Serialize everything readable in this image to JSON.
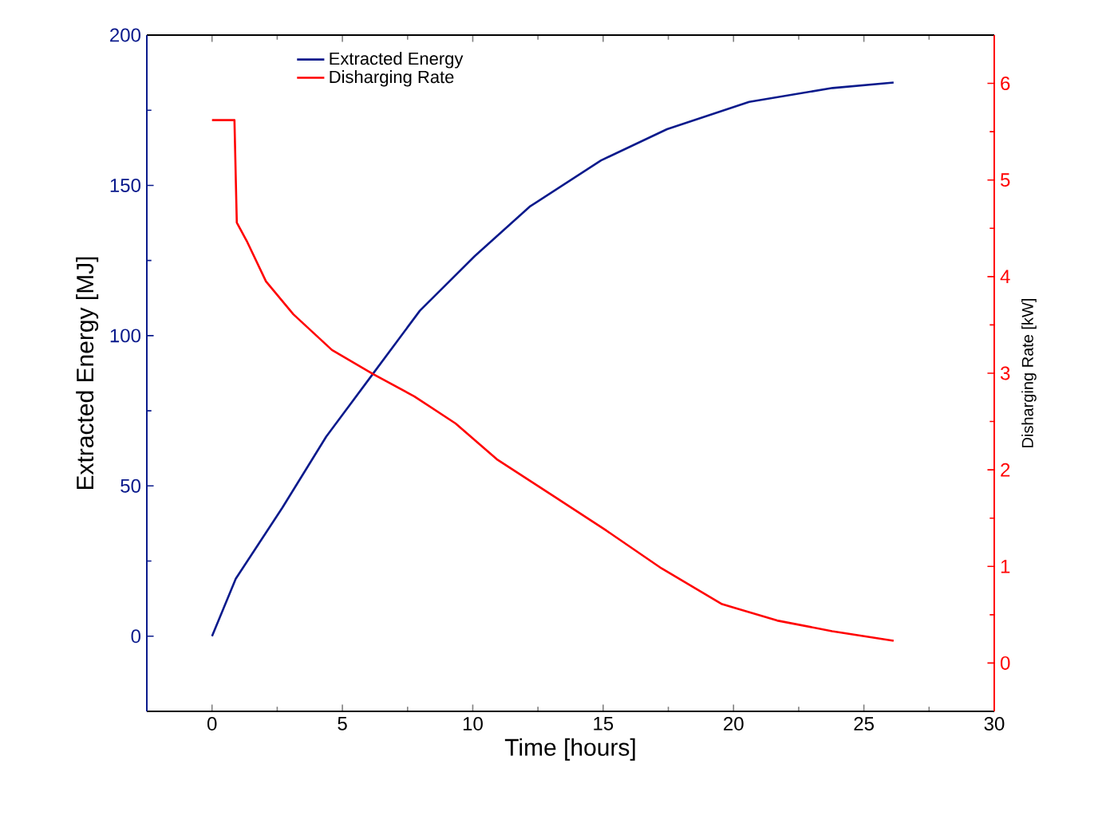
{
  "chart_data": {
    "type": "line",
    "xlabel": "Time [hours]",
    "ylabel": "Extracted Energy [MJ]",
    "y2label": "Disharging Rate [kW]",
    "xlim": [
      -2.5,
      30
    ],
    "xticks": [
      0,
      5,
      10,
      15,
      20,
      25,
      30
    ],
    "ylim": [
      -25,
      200
    ],
    "yticks": [
      0,
      50,
      100,
      150,
      200
    ],
    "y2lim": [
      -0.5,
      6.5
    ],
    "y2ticks": [
      0,
      1,
      2,
      3,
      4,
      5,
      6
    ],
    "grid": false,
    "legend": "top left",
    "marker": "none",
    "line_style": "solid",
    "series": [
      {
        "name": "Extracted Energy",
        "color": "#0a1a8c",
        "x": [
          0,
          0.91,
          2.7,
          4.38,
          6.18,
          7.97,
          10.08,
          12.18,
          14.92,
          17.45,
          20.6,
          23.8,
          26.14
        ],
        "values": [
          0,
          19.1,
          42.8,
          66.4,
          87.4,
          108.3,
          126.5,
          142.9,
          158.3,
          168.7,
          177.8,
          182.4,
          184.2
        ]
      },
      {
        "name": "Disharging Rate",
        "color": "#ff0000",
        "axis": "y2",
        "x": [
          0,
          0.86,
          0.95,
          1.33,
          2.07,
          3.12,
          4.6,
          6.18,
          7.76,
          9.34,
          10.92,
          13.03,
          15.13,
          17.24,
          19.56,
          21.67,
          23.78,
          26.14
        ],
        "values": [
          5.62,
          5.62,
          4.56,
          4.37,
          3.95,
          3.61,
          3.24,
          2.99,
          2.76,
          2.48,
          2.11,
          1.74,
          1.37,
          0.98,
          0.61,
          0.44,
          0.33,
          0.23
        ]
      }
    ]
  }
}
